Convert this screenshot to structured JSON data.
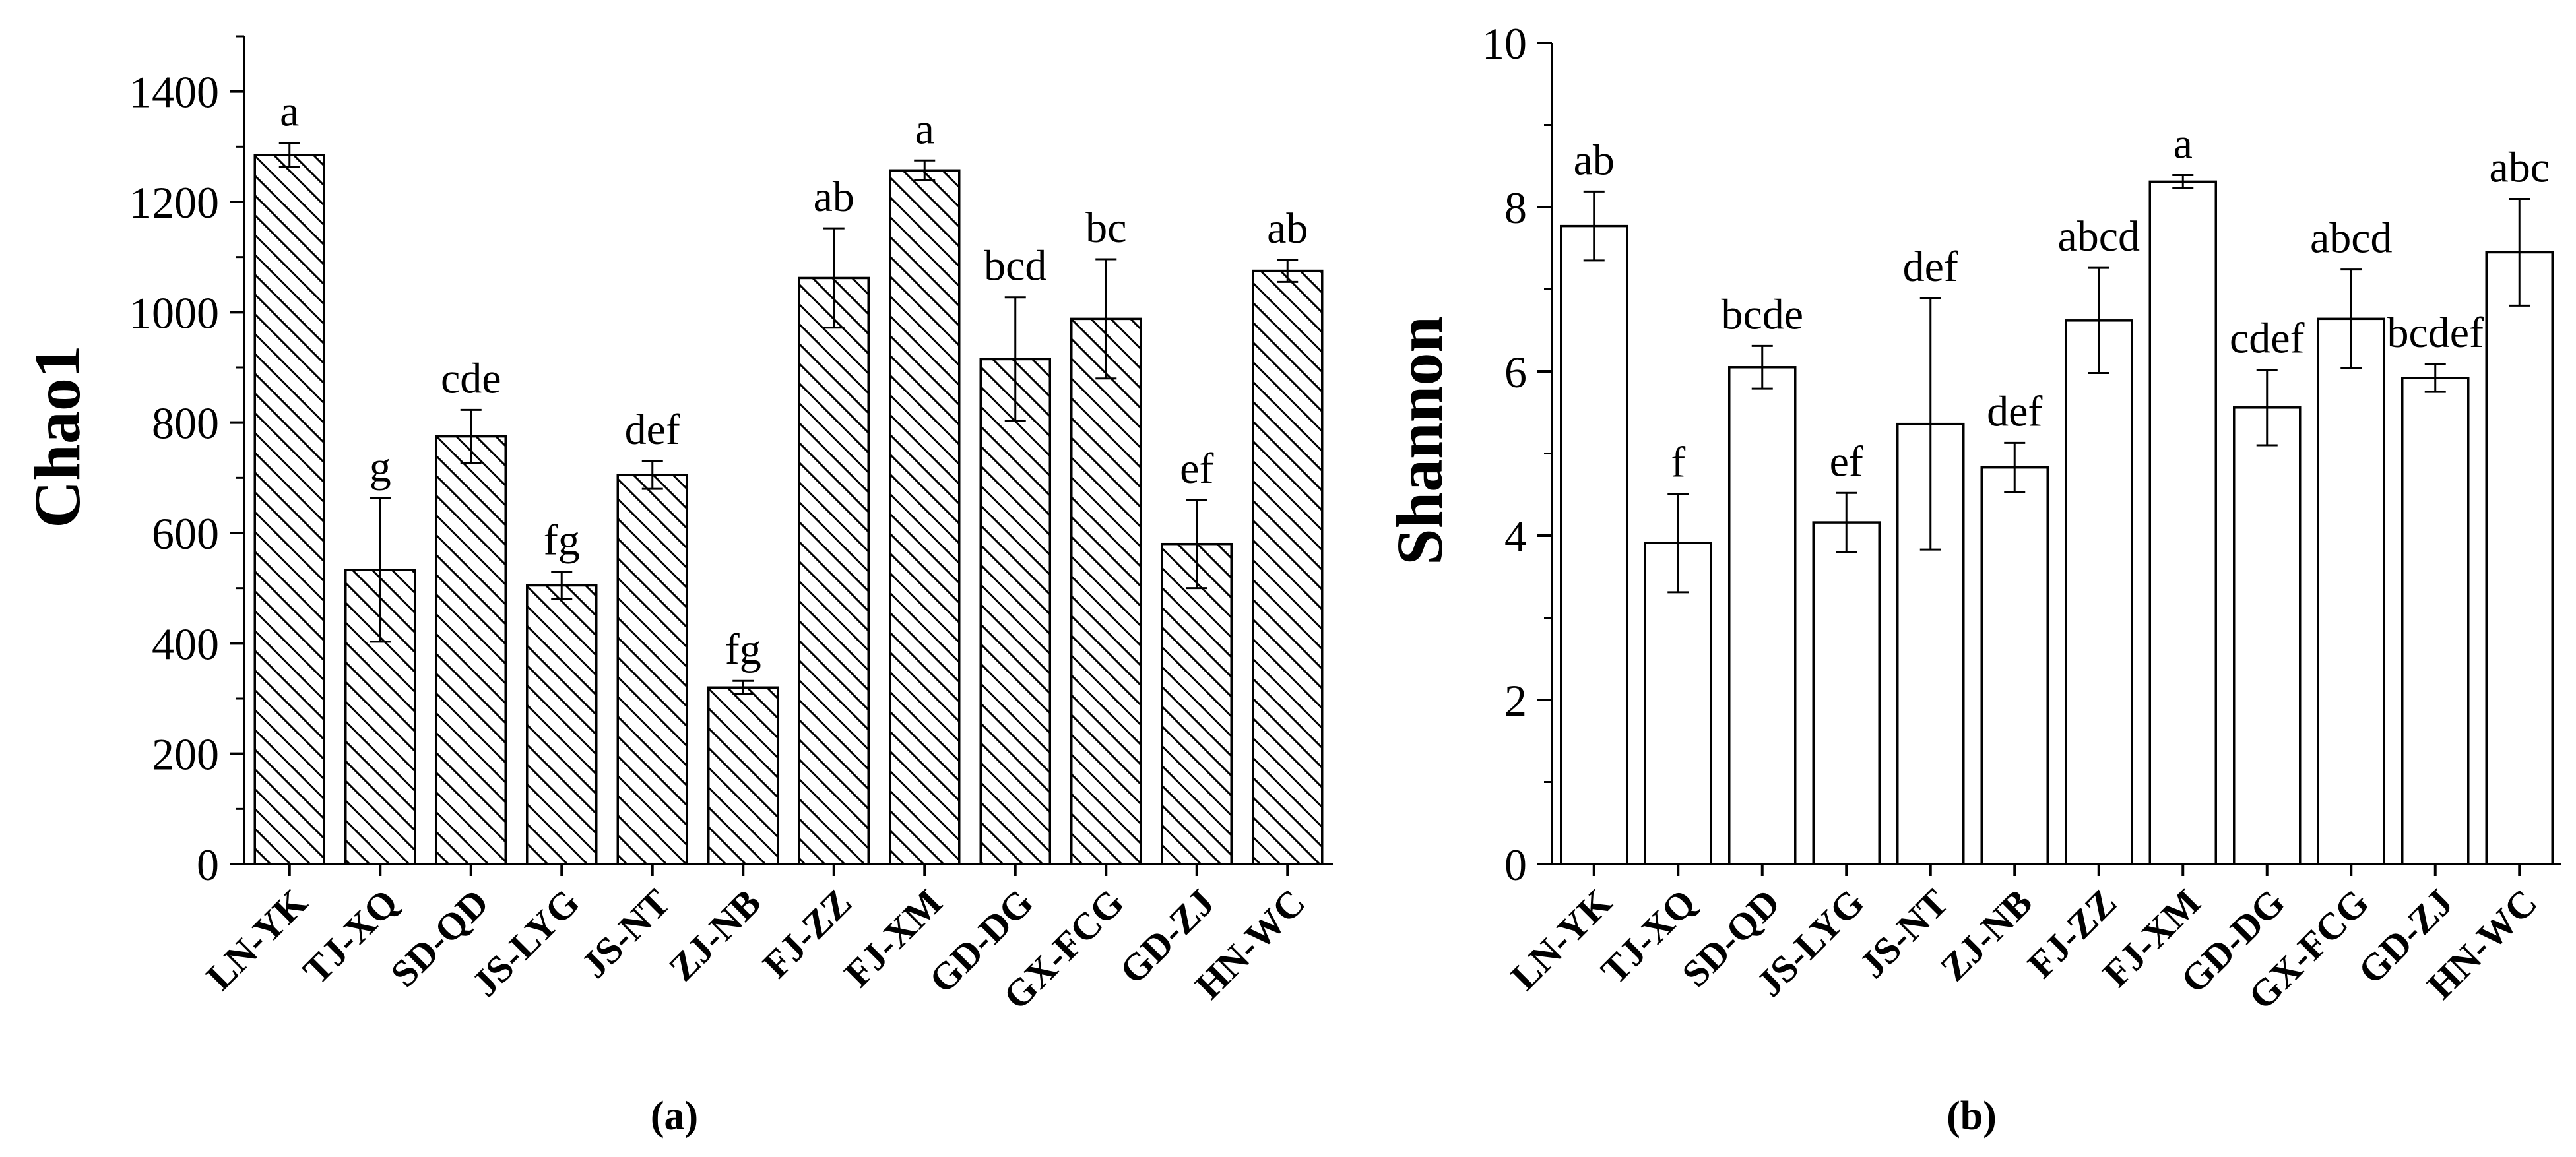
{
  "figure": {
    "panel_labels": [
      "(a)",
      "(b)"
    ]
  },
  "chart_data": [
    {
      "type": "bar",
      "panel": "(a)",
      "ylabel": "Chao1",
      "xlabel": "",
      "ylim": [
        0,
        1500
      ],
      "yticks": [
        0,
        200,
        400,
        600,
        800,
        1000,
        1200,
        1400
      ],
      "pattern": "diagonal-hatch",
      "categories": [
        "LN-YK",
        "TJ-XQ",
        "SD-QD",
        "JS-LYG",
        "JS-NT",
        "ZJ-NB",
        "FJ-ZZ",
        "FJ-XM",
        "GD-DG",
        "GX-FCG",
        "GD-ZJ",
        "HN-WC"
      ],
      "values": [
        1285,
        533,
        775,
        505,
        705,
        320,
        1062,
        1257,
        915,
        988,
        580,
        1075
      ],
      "errors": [
        22,
        130,
        48,
        25,
        25,
        12,
        90,
        18,
        112,
        108,
        80,
        20
      ],
      "significance": [
        "a",
        "g",
        "cde",
        "fg",
        "def",
        "fg",
        "ab",
        "a",
        "bcd",
        "bc",
        "ef",
        "ab"
      ]
    },
    {
      "type": "bar",
      "panel": "(b)",
      "ylabel": "Shannon",
      "xlabel": "",
      "ylim": [
        0,
        10
      ],
      "yticks": [
        0,
        2,
        4,
        6,
        8,
        10
      ],
      "pattern": "none",
      "categories": [
        "LN-YK",
        "TJ-XQ",
        "SD-QD",
        "JS-LYG",
        "JS-NT",
        "ZJ-NB",
        "FJ-ZZ",
        "FJ-XM",
        "GD-DG",
        "GX-FCG",
        "GD-ZJ",
        "HN-WC"
      ],
      "values": [
        7.77,
        3.91,
        6.05,
        4.16,
        5.36,
        4.83,
        6.62,
        8.31,
        5.56,
        6.64,
        5.92,
        7.45
      ],
      "errors": [
        0.42,
        0.6,
        0.26,
        0.36,
        1.53,
        0.3,
        0.64,
        0.08,
        0.46,
        0.6,
        0.17,
        0.65
      ],
      "significance": [
        "ab",
        "f",
        "bcde",
        "ef",
        "def",
        "def",
        "abcd",
        "a",
        "cdef",
        "abcd",
        "bcdef",
        "abc"
      ]
    }
  ]
}
